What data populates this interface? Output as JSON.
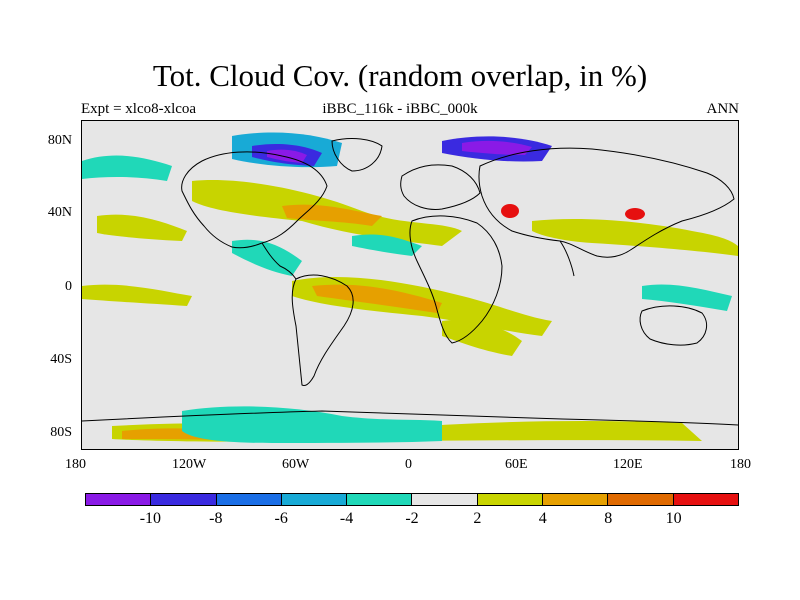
{
  "title": "Tot. Cloud Cov. (random overlap, in %)",
  "left_label": "Expt = xlco8-xlcoa",
  "center_label": "iBBC_116k - iBBC_000k",
  "right_label": "ANN",
  "x_ticks": [
    "180",
    "120W",
    "60W",
    "0",
    "60E",
    "120E",
    "180"
  ],
  "y_ticks": [
    "80N",
    "40N",
    "0",
    "40S",
    "80S"
  ],
  "colorbar": {
    "colors": [
      "#8a1ae6",
      "#3a2ae0",
      "#1a6ee6",
      "#18aad6",
      "#20d8b8",
      "#e6e6e6",
      "#c8d400",
      "#e6a000",
      "#e06a00",
      "#e61010"
    ],
    "labels": [
      "-10",
      "-8",
      "-6",
      "-4",
      "-2",
      "2",
      "4",
      "8",
      "10"
    ]
  },
  "colors": {
    "background": "#e6e6e6",
    "coast": "#000000"
  }
}
